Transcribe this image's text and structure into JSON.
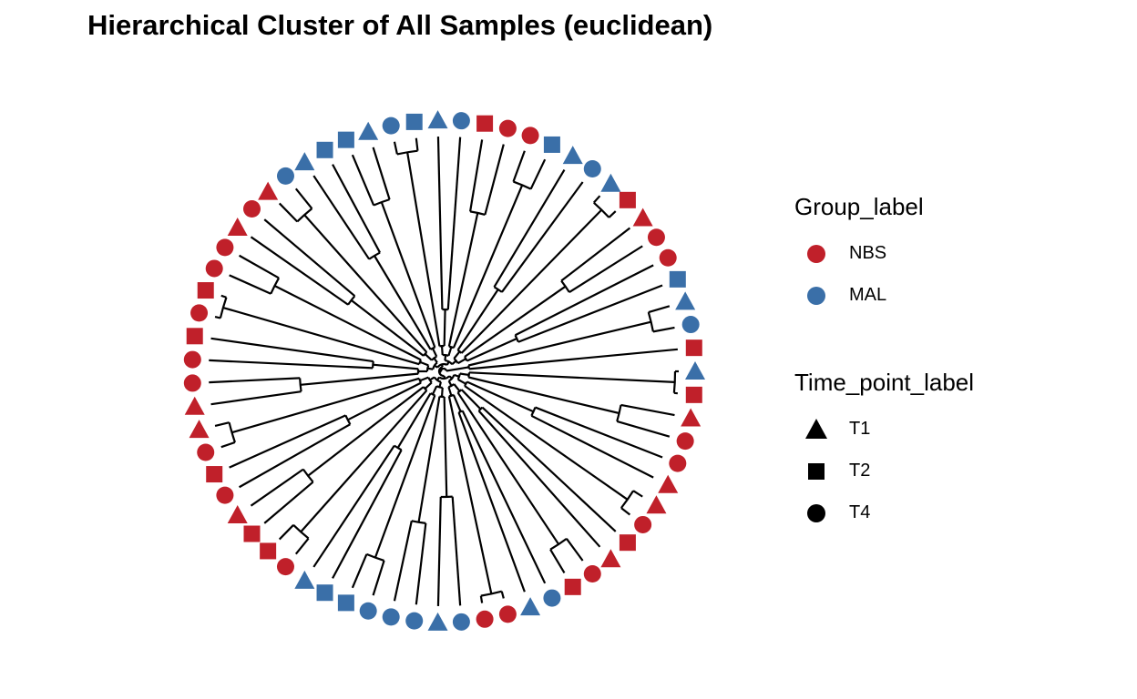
{
  "title": "Hierarchical Cluster of All Samples (euclidean)",
  "colors": {
    "NBS": "#c0202a",
    "MAL": "#3a6fa8",
    "branch": "#000000"
  },
  "legend": {
    "group": {
      "title": "Group_label",
      "items": [
        {
          "label": "NBS",
          "color": "#c0202a"
        },
        {
          "label": "MAL",
          "color": "#3a6fa8"
        }
      ]
    },
    "time": {
      "title": "Time_point_label",
      "items": [
        {
          "label": "T1",
          "shape": "triangle"
        },
        {
          "label": "T2",
          "shape": "square"
        },
        {
          "label": "T4",
          "shape": "circle"
        }
      ]
    }
  },
  "leaves": [
    {
      "group": "MAL",
      "time": "T1"
    },
    {
      "group": "NBS",
      "time": "T2"
    },
    {
      "group": "NBS",
      "time": "T1"
    },
    {
      "group": "NBS",
      "time": "T4"
    },
    {
      "group": "NBS",
      "time": "T4"
    },
    {
      "group": "NBS",
      "time": "T1"
    },
    {
      "group": "NBS",
      "time": "T1"
    },
    {
      "group": "NBS",
      "time": "T4"
    },
    {
      "group": "NBS",
      "time": "T2"
    },
    {
      "group": "NBS",
      "time": "T1"
    },
    {
      "group": "NBS",
      "time": "T4"
    },
    {
      "group": "NBS",
      "time": "T2"
    },
    {
      "group": "MAL",
      "time": "T4"
    },
    {
      "group": "MAL",
      "time": "T1"
    },
    {
      "group": "NBS",
      "time": "T4"
    },
    {
      "group": "NBS",
      "time": "T4"
    },
    {
      "group": "MAL",
      "time": "T4"
    },
    {
      "group": "MAL",
      "time": "T1"
    },
    {
      "group": "MAL",
      "time": "T4"
    },
    {
      "group": "MAL",
      "time": "T4"
    },
    {
      "group": "MAL",
      "time": "T4"
    },
    {
      "group": "MAL",
      "time": "T2"
    },
    {
      "group": "MAL",
      "time": "T2"
    },
    {
      "group": "MAL",
      "time": "T1"
    },
    {
      "group": "NBS",
      "time": "T4"
    },
    {
      "group": "NBS",
      "time": "T2"
    },
    {
      "group": "NBS",
      "time": "T2"
    },
    {
      "group": "NBS",
      "time": "T1"
    },
    {
      "group": "NBS",
      "time": "T4"
    },
    {
      "group": "NBS",
      "time": "T2"
    },
    {
      "group": "NBS",
      "time": "T4"
    },
    {
      "group": "NBS",
      "time": "T1"
    },
    {
      "group": "NBS",
      "time": "T1"
    },
    {
      "group": "NBS",
      "time": "T4"
    },
    {
      "group": "NBS",
      "time": "T4"
    },
    {
      "group": "NBS",
      "time": "T2"
    },
    {
      "group": "NBS",
      "time": "T4"
    },
    {
      "group": "NBS",
      "time": "T2"
    },
    {
      "group": "NBS",
      "time": "T4"
    },
    {
      "group": "NBS",
      "time": "T4"
    },
    {
      "group": "NBS",
      "time": "T1"
    },
    {
      "group": "NBS",
      "time": "T4"
    },
    {
      "group": "NBS",
      "time": "T1"
    },
    {
      "group": "MAL",
      "time": "T4"
    },
    {
      "group": "MAL",
      "time": "T1"
    },
    {
      "group": "MAL",
      "time": "T2"
    },
    {
      "group": "MAL",
      "time": "T2"
    },
    {
      "group": "MAL",
      "time": "T1"
    },
    {
      "group": "MAL",
      "time": "T4"
    },
    {
      "group": "MAL",
      "time": "T2"
    },
    {
      "group": "MAL",
      "time": "T1"
    },
    {
      "group": "MAL",
      "time": "T4"
    },
    {
      "group": "NBS",
      "time": "T2"
    },
    {
      "group": "NBS",
      "time": "T4"
    },
    {
      "group": "NBS",
      "time": "T4"
    },
    {
      "group": "MAL",
      "time": "T2"
    },
    {
      "group": "MAL",
      "time": "T1"
    },
    {
      "group": "MAL",
      "time": "T4"
    },
    {
      "group": "MAL",
      "time": "T1"
    },
    {
      "group": "NBS",
      "time": "T2"
    },
    {
      "group": "NBS",
      "time": "T1"
    },
    {
      "group": "NBS",
      "time": "T4"
    },
    {
      "group": "NBS",
      "time": "T4"
    },
    {
      "group": "MAL",
      "time": "T2"
    },
    {
      "group": "MAL",
      "time": "T1"
    },
    {
      "group": "MAL",
      "time": "T4"
    },
    {
      "group": "NBS",
      "time": "T2"
    }
  ]
}
